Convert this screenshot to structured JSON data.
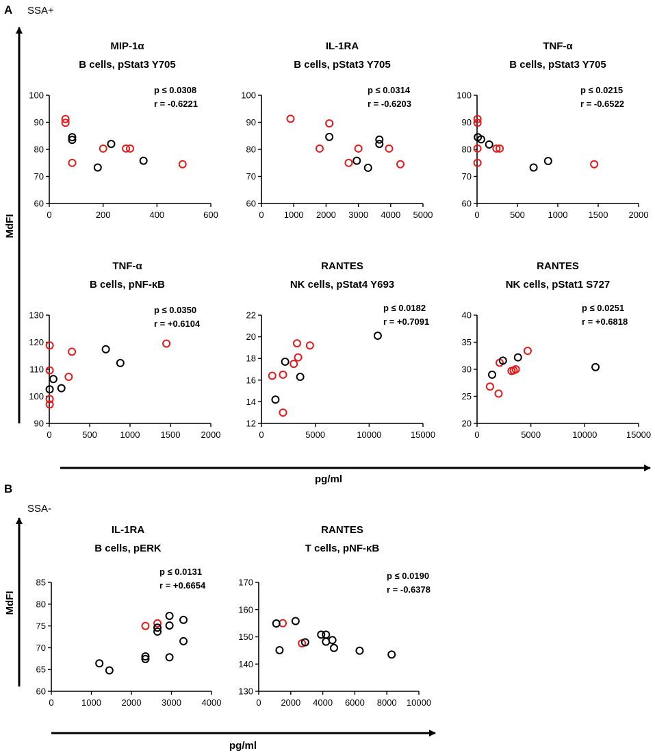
{
  "figure": {
    "panel_a_letter": "A",
    "panel_a_group": "SSA+",
    "panel_b_letter": "B",
    "panel_b_group": "SSA-",
    "y_axis_label_a": "MdFI",
    "x_axis_label_a": "pg/ml",
    "y_axis_label_b": "MdFI",
    "x_axis_label_b": "pg/ml"
  },
  "colors": {
    "red": "#e31a1c",
    "black": "#000000"
  },
  "chart_data": [
    {
      "type": "scatter",
      "id": "a1",
      "title": "MIP-1α",
      "subtitle": "B cells, pStat3 Y705",
      "p": "p ≤ 0.0308",
      "r": "r = -0.6221",
      "xlim": [
        0,
        600
      ],
      "ylim": [
        60,
        100
      ],
      "xticks": [
        0,
        200,
        400,
        600
      ],
      "yticks": [
        60,
        70,
        80,
        90,
        100
      ],
      "series": [
        {
          "name": "red",
          "color": "#e31a1c",
          "points": [
            [
              60,
              91.2
            ],
            [
              60,
              89.8
            ],
            [
              85,
              75
            ],
            [
              200,
              80.3
            ],
            [
              285,
              80.3
            ],
            [
              300,
              80.3
            ],
            [
              495,
              74.5
            ]
          ]
        },
        {
          "name": "black",
          "color": "#000000",
          "points": [
            [
              85,
              84.5
            ],
            [
              85,
              83.5
            ],
            [
              180,
              73.3
            ],
            [
              230,
              82
            ],
            [
              350,
              75.8
            ]
          ]
        }
      ]
    },
    {
      "type": "scatter",
      "id": "a2",
      "title": "IL-1RA",
      "subtitle": "B cells, pStat3 Y705",
      "p": "p ≤ 0.0314",
      "r": "r = -0.6203",
      "xlim": [
        0,
        5000
      ],
      "ylim": [
        60,
        100
      ],
      "xticks": [
        0,
        1000,
        2000,
        3000,
        4000,
        5000
      ],
      "yticks": [
        60,
        70,
        80,
        90,
        100
      ],
      "series": [
        {
          "name": "red",
          "color": "#e31a1c",
          "points": [
            [
              900,
              91.3
            ],
            [
              2100,
              89.6
            ],
            [
              1800,
              80.3
            ],
            [
              2700,
              75
            ],
            [
              3000,
              80.3
            ],
            [
              3950,
              80.3
            ],
            [
              4300,
              74.5
            ]
          ]
        },
        {
          "name": "black",
          "color": "#000000",
          "points": [
            [
              2100,
              84.6
            ],
            [
              2950,
              75.8
            ],
            [
              3300,
              73.2
            ],
            [
              3650,
              83.6
            ],
            [
              3650,
              82
            ]
          ]
        }
      ]
    },
    {
      "type": "scatter",
      "id": "a3",
      "title": "TNF-α",
      "subtitle": "B cells, pStat3 Y705",
      "p": "p ≤ 0.0215",
      "r": "r = -0.6522",
      "xlim": [
        0,
        2000
      ],
      "ylim": [
        60,
        100
      ],
      "xticks": [
        0,
        500,
        1000,
        1500,
        2000
      ],
      "yticks": [
        60,
        70,
        80,
        90,
        100
      ],
      "series": [
        {
          "name": "red",
          "color": "#e31a1c",
          "points": [
            [
              5,
              91.2
            ],
            [
              5,
              89.8
            ],
            [
              5,
              80.3
            ],
            [
              5,
              75
            ],
            [
              240,
              80.3
            ],
            [
              280,
              80.3
            ],
            [
              1450,
              74.5
            ]
          ]
        },
        {
          "name": "black",
          "color": "#000000",
          "points": [
            [
              10,
              84.5
            ],
            [
              50,
              83.7
            ],
            [
              150,
              81.8
            ],
            [
              700,
              73.3
            ],
            [
              880,
              75.7
            ]
          ]
        }
      ]
    },
    {
      "type": "scatter",
      "id": "a4",
      "title": "TNF-α",
      "subtitle": "B cells, pNF-κB",
      "p": "p ≤ 0.0350",
      "r": "r = +0.6104",
      "xlim": [
        0,
        2000
      ],
      "ylim": [
        90,
        130
      ],
      "xticks": [
        0,
        500,
        1000,
        1500,
        2000
      ],
      "yticks": [
        90,
        100,
        110,
        120,
        130
      ],
      "series": [
        {
          "name": "red",
          "color": "#e31a1c",
          "points": [
            [
              5,
              118.8
            ],
            [
              5,
              109.6
            ],
            [
              5,
              99
            ],
            [
              5,
              97
            ],
            [
              240,
              107.2
            ],
            [
              280,
              116.5
            ],
            [
              1450,
              119.5
            ]
          ]
        },
        {
          "name": "black",
          "color": "#000000",
          "points": [
            [
              5,
              102.6
            ],
            [
              50,
              106.4
            ],
            [
              150,
              103
            ],
            [
              700,
              117.4
            ],
            [
              880,
              112.3
            ]
          ]
        }
      ]
    },
    {
      "type": "scatter",
      "id": "a5",
      "title": "RANTES",
      "subtitle": "NK cells, pStat4 Y693",
      "p": "p ≤ 0.0182",
      "r": "r = +0.7091",
      "xlim": [
        0,
        15000
      ],
      "ylim": [
        12,
        22
      ],
      "xticks": [
        0,
        5000,
        10000,
        15000
      ],
      "yticks": [
        12,
        14,
        16,
        18,
        20,
        22
      ],
      "series": [
        {
          "name": "red",
          "color": "#e31a1c",
          "points": [
            [
              1000,
              16.4
            ],
            [
              2000,
              16.5
            ],
            [
              2000,
              13
            ],
            [
              3000,
              17.5
            ],
            [
              3300,
              19.4
            ],
            [
              3400,
              18.1
            ],
            [
              4500,
              19.2
            ]
          ]
        },
        {
          "name": "black",
          "color": "#000000",
          "points": [
            [
              1300,
              14.2
            ],
            [
              2200,
              17.7
            ],
            [
              3600,
              16.3
            ],
            [
              10800,
              20.1
            ]
          ]
        }
      ]
    },
    {
      "type": "scatter",
      "id": "a6",
      "title": "RANTES",
      "subtitle": "NK cells, pStat1 S727",
      "p": "p ≤ 0.0251",
      "r": "r = +0.6818",
      "xlim": [
        0,
        15000
      ],
      "ylim": [
        20,
        40
      ],
      "xticks": [
        0,
        5000,
        10000,
        15000
      ],
      "yticks": [
        20,
        25,
        30,
        35,
        40
      ],
      "series": [
        {
          "name": "red",
          "color": "#e31a1c",
          "points": [
            [
              1200,
              26.8
            ],
            [
              2000,
              25.5
            ],
            [
              2100,
              31.2
            ],
            [
              3200,
              29.7
            ],
            [
              3400,
              29.8
            ],
            [
              3600,
              30
            ],
            [
              4700,
              33.4
            ]
          ]
        },
        {
          "name": "black",
          "color": "#000000",
          "points": [
            [
              1400,
              29
            ],
            [
              2400,
              31.6
            ],
            [
              3800,
              32.2
            ],
            [
              11000,
              30.4
            ]
          ]
        }
      ]
    },
    {
      "type": "scatter",
      "id": "b1",
      "title": "IL-1RA",
      "subtitle": "B cells, pERK",
      "p": "p ≤ 0.0131",
      "r": "r = +0.6654",
      "xlim": [
        0,
        4000
      ],
      "ylim": [
        60,
        85
      ],
      "xticks": [
        0,
        1000,
        2000,
        3000,
        4000
      ],
      "yticks": [
        60,
        65,
        70,
        75,
        80,
        85
      ],
      "series": [
        {
          "name": "red",
          "color": "#e31a1c",
          "points": [
            [
              2350,
              75
            ],
            [
              2650,
              75.6
            ]
          ]
        },
        {
          "name": "black",
          "color": "#000000",
          "points": [
            [
              1200,
              66.4
            ],
            [
              1450,
              64.8
            ],
            [
              2350,
              68
            ],
            [
              2350,
              67.4
            ],
            [
              2650,
              74.6
            ],
            [
              2650,
              73.7
            ],
            [
              2950,
              75.1
            ],
            [
              2950,
              77.3
            ],
            [
              2950,
              67.8
            ],
            [
              3300,
              76.4
            ],
            [
              3300,
              71.5
            ]
          ]
        }
      ]
    },
    {
      "type": "scatter",
      "id": "b2",
      "title": "RANTES",
      "subtitle": "T cells, pNF-κB",
      "p": "p ≤ 0.0190",
      "r": "r = -0.6378",
      "xlim": [
        0,
        10000
      ],
      "ylim": [
        130,
        170
      ],
      "xticks": [
        0,
        2000,
        4000,
        6000,
        8000,
        10000
      ],
      "yticks": [
        130,
        140,
        150,
        160,
        170
      ],
      "series": [
        {
          "name": "red",
          "color": "#e31a1c",
          "points": [
            [
              1500,
              155
            ],
            [
              2700,
              147.6
            ]
          ]
        },
        {
          "name": "black",
          "color": "#000000",
          "points": [
            [
              1100,
              154.9
            ],
            [
              1300,
              145.1
            ],
            [
              2300,
              155.8
            ],
            [
              2900,
              148
            ],
            [
              3900,
              150.8
            ],
            [
              4200,
              150.8
            ],
            [
              4200,
              148.2
            ],
            [
              4600,
              148.8
            ],
            [
              4700,
              145.9
            ],
            [
              6300,
              144.9
            ],
            [
              8300,
              143.5
            ]
          ]
        }
      ]
    }
  ]
}
